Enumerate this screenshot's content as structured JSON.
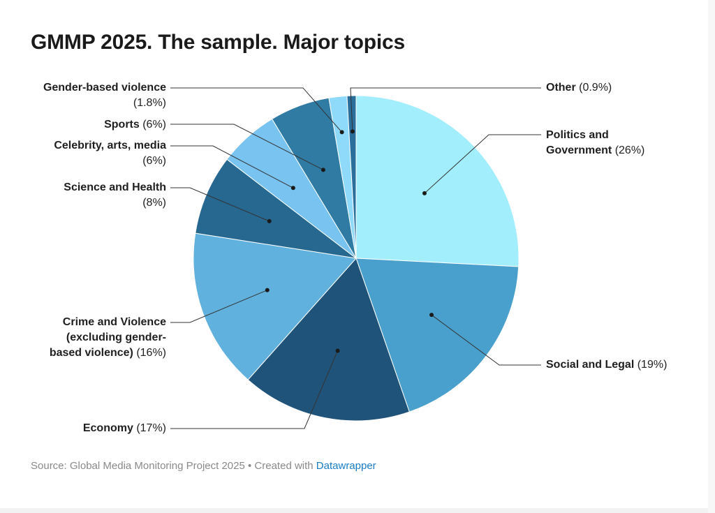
{
  "title": "GMMP 2025. The sample. Major topics",
  "footer": {
    "text": "Source: Global Media Monitoring Project 2025 • Created with ",
    "link_text": "Datawrapper"
  },
  "chart_data": {
    "type": "pie",
    "title": "GMMP 2025. The sample. Major topics",
    "slices": [
      {
        "label": "Politics and Government",
        "value": 26,
        "value_label": "(26%)",
        "color": "#a3eefc"
      },
      {
        "label": "Social and Legal",
        "value": 19,
        "value_label": "(19%)",
        "color": "#4aa0cc"
      },
      {
        "label": "Economy",
        "value": 17,
        "value_label": "(17%)",
        "color": "#20537a"
      },
      {
        "label": "Crime and Violence (excluding gender-based violence)",
        "value": 16,
        "value_label": "(16%)",
        "color": "#61b1de"
      },
      {
        "label": "Science and Health",
        "value": 8,
        "value_label": "(8%)",
        "color": "#276891"
      },
      {
        "label": "Celebrity, arts, media",
        "value": 6,
        "value_label": "(6%)",
        "color": "#78c3f0"
      },
      {
        "label": "Sports",
        "value": 6,
        "value_label": "(6%)",
        "color": "#307ba3"
      },
      {
        "label": "Gender-based violence",
        "value": 1.8,
        "value_label": "(1.8%)",
        "color": "#8fd9fa"
      },
      {
        "label": "Other",
        "value": 0.9,
        "value_label": "(0.9%)",
        "color": "#2a6f9c"
      }
    ]
  }
}
